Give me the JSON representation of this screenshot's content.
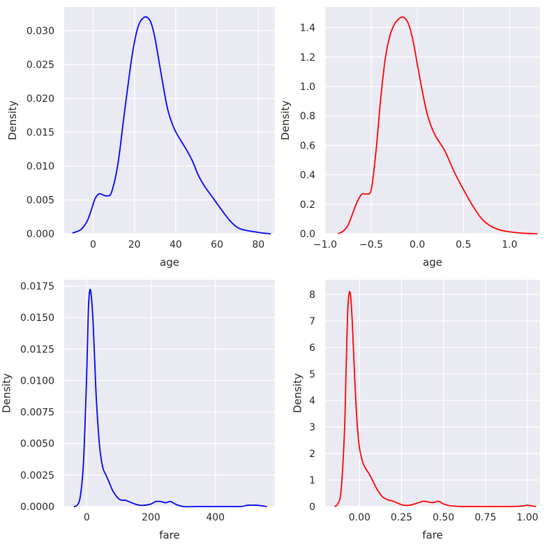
{
  "chart_data": [
    {
      "type": "line",
      "title": "",
      "xlabel": "age",
      "ylabel": "Density",
      "xlim": [
        -14,
        88
      ],
      "ylim": [
        0,
        0.0335
      ],
      "xticks": [
        0,
        20,
        40,
        60,
        80
      ],
      "xtick_labels": [
        "0",
        "20",
        "40",
        "60",
        "80"
      ],
      "yticks": [
        0,
        0.005,
        0.01,
        0.015,
        0.02,
        0.025,
        0.03
      ],
      "ytick_labels": [
        "0.000",
        "0.005",
        "0.010",
        "0.015",
        "0.020",
        "0.025",
        "0.030"
      ],
      "grid": true,
      "color": "#0000ff",
      "series": [
        {
          "x": [
            -10,
            -6,
            -3,
            -1,
            1,
            3,
            5,
            7,
            9,
            12,
            15,
            18,
            20,
            22,
            24,
            26,
            28,
            30,
            33,
            36,
            39,
            42,
            45,
            48,
            51,
            54,
            58,
            62,
            66,
            70,
            74,
            78,
            82,
            86
          ],
          "y": [
            0.0001,
            0.0006,
            0.0018,
            0.0034,
            0.0052,
            0.0059,
            0.0057,
            0.0056,
            0.0062,
            0.0103,
            0.0175,
            0.0245,
            0.0283,
            0.0308,
            0.0318,
            0.032,
            0.0312,
            0.0288,
            0.0235,
            0.0185,
            0.0157,
            0.014,
            0.0125,
            0.0108,
            0.0086,
            0.007,
            0.0053,
            0.0036,
            0.002,
            0.0009,
            0.0005,
            0.0003,
            0.0001,
            0.0
          ]
        }
      ]
    },
    {
      "type": "line",
      "title": "",
      "xlabel": "age",
      "ylabel": "Density",
      "xlim": [
        -1.0,
        1.33
      ],
      "ylim": [
        0,
        1.54
      ],
      "xticks": [
        -1.0,
        -0.5,
        0.0,
        0.5,
        1.0
      ],
      "xtick_labels": [
        "−1.0",
        "−0.5",
        "0.0",
        "0.5",
        "1.0"
      ],
      "yticks": [
        0,
        0.2,
        0.4,
        0.6,
        0.8,
        1.0,
        1.2,
        1.4
      ],
      "ytick_labels": [
        "0.0",
        "0.2",
        "0.4",
        "0.6",
        "0.8",
        "1.0",
        "1.2",
        "1.4"
      ],
      "grid": true,
      "color": "#ff0000",
      "series": [
        {
          "x": [
            -0.86,
            -0.8,
            -0.75,
            -0.7,
            -0.65,
            -0.6,
            -0.55,
            -0.5,
            -0.45,
            -0.4,
            -0.35,
            -0.3,
            -0.25,
            -0.2,
            -0.15,
            -0.1,
            -0.05,
            0.0,
            0.05,
            0.1,
            0.15,
            0.2,
            0.3,
            0.4,
            0.5,
            0.6,
            0.7,
            0.8,
            0.9,
            1.0,
            1.1,
            1.2,
            1.3
          ],
          "y": [
            0.0,
            0.02,
            0.06,
            0.14,
            0.22,
            0.27,
            0.27,
            0.3,
            0.55,
            0.9,
            1.18,
            1.34,
            1.42,
            1.46,
            1.47,
            1.43,
            1.32,
            1.15,
            0.98,
            0.83,
            0.73,
            0.66,
            0.56,
            0.42,
            0.3,
            0.19,
            0.1,
            0.05,
            0.025,
            0.013,
            0.006,
            0.002,
            0.0
          ]
        }
      ]
    },
    {
      "type": "line",
      "title": "",
      "xlabel": "fare",
      "ylabel": "Density",
      "xlim": [
        -70,
        585
      ],
      "ylim": [
        0,
        0.018
      ],
      "xticks": [
        0,
        200,
        400
      ],
      "xtick_labels": [
        "0",
        "200",
        "400"
      ],
      "yticks": [
        0,
        0.0025,
        0.005,
        0.0075,
        0.01,
        0.0125,
        0.015,
        0.0175
      ],
      "ytick_labels": [
        "0.0000",
        "0.0025",
        "0.0050",
        "0.0075",
        "0.0100",
        "0.0125",
        "0.0150",
        "0.0175"
      ],
      "grid": true,
      "color": "#0000ff",
      "series": [
        {
          "x": [
            -40,
            -30,
            -20,
            -10,
            0,
            5,
            10,
            15,
            20,
            25,
            30,
            40,
            50,
            60,
            70,
            80,
            90,
            100,
            110,
            120,
            130,
            140,
            150,
            165,
            180,
            200,
            215,
            230,
            245,
            260,
            275,
            300,
            350,
            400,
            450,
            480,
            500,
            515,
            530,
            560
          ],
          "y": [
            0.0,
            0.0001,
            0.0008,
            0.0035,
            0.0105,
            0.0155,
            0.0172,
            0.0165,
            0.0145,
            0.0115,
            0.0085,
            0.0048,
            0.0031,
            0.0025,
            0.0019,
            0.0013,
            0.0009,
            0.0006,
            0.0005,
            0.0005,
            0.0004,
            0.0003,
            0.0002,
            0.0001,
            0.0001,
            0.0002,
            0.0004,
            0.0004,
            0.0003,
            0.0004,
            0.0002,
            0.0,
            0.0,
            0.0,
            0.0,
            0.0,
            0.0001,
            0.0001,
            0.0001,
            0.0
          ]
        }
      ]
    },
    {
      "type": "line",
      "title": "",
      "xlabel": "fare",
      "ylabel": "Density",
      "xlim": [
        -0.205,
        1.075
      ],
      "ylim": [
        0,
        8.55
      ],
      "xticks": [
        0.0,
        0.25,
        0.5,
        0.75,
        1.0
      ],
      "xtick_labels": [
        "0.00",
        "0.25",
        "0.50",
        "0.75",
        "1.00"
      ],
      "yticks": [
        0,
        1,
        2,
        3,
        4,
        5,
        6,
        7,
        8
      ],
      "ytick_labels": [
        "0",
        "1",
        "2",
        "3",
        "4",
        "5",
        "6",
        "7",
        "8"
      ],
      "grid": true,
      "color": "#ff0000",
      "series": [
        {
          "x": [
            -0.15,
            -0.13,
            -0.11,
            -0.09,
            -0.08,
            -0.07,
            -0.06,
            -0.05,
            -0.04,
            -0.03,
            -0.02,
            -0.01,
            0.0,
            0.02,
            0.04,
            0.06,
            0.08,
            0.1,
            0.12,
            0.14,
            0.17,
            0.2,
            0.23,
            0.26,
            0.3,
            0.34,
            0.38,
            0.41,
            0.44,
            0.47,
            0.5,
            0.55,
            0.65,
            0.75,
            0.85,
            0.95,
            0.98,
            1.0,
            1.02,
            1.05
          ],
          "y": [
            0.0,
            0.1,
            0.6,
            2.8,
            5.2,
            7.4,
            8.1,
            7.7,
            6.5,
            5.0,
            3.7,
            2.8,
            2.2,
            1.65,
            1.4,
            1.2,
            0.95,
            0.7,
            0.5,
            0.35,
            0.25,
            0.2,
            0.12,
            0.05,
            0.05,
            0.12,
            0.2,
            0.17,
            0.15,
            0.2,
            0.1,
            0.02,
            0.0,
            0.0,
            0.0,
            0.01,
            0.03,
            0.05,
            0.03,
            0.0
          ]
        }
      ]
    }
  ]
}
